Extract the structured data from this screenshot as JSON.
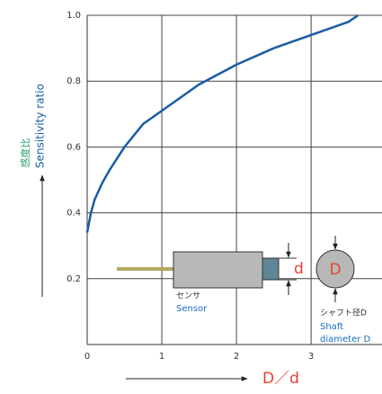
{
  "chart_data": {
    "type": "line",
    "y_label": "Sensitivity ratio",
    "y_label_ja": "感度比",
    "x_label": "D／d",
    "x": [
      0,
      0.05,
      0.1,
      0.2,
      0.3,
      0.5,
      0.75,
      1,
      1.5,
      2,
      2.5,
      3,
      3.5,
      3.63
    ],
    "series": [
      {
        "color": "#1a5ca6",
        "values": [
          0.34,
          0.4,
          0.44,
          0.49,
          0.53,
          0.6,
          0.67,
          0.71,
          0.79,
          0.85,
          0.9,
          0.94,
          0.98,
          1.0
        ]
      }
    ],
    "xlim": [
      0,
      3.95
    ],
    "ylim": [
      0,
      1.0
    ],
    "xticks": [
      0,
      1,
      2,
      3
    ],
    "yticks": [
      {
        "value": 0.2,
        "label": "0.2"
      },
      {
        "value": 0.4,
        "label": "0.4"
      },
      {
        "value": 0.6,
        "label": "0.6"
      },
      {
        "value": 0.8,
        "label": "0.8"
      },
      {
        "value": 1.0,
        "label": "1.0"
      }
    ],
    "grid": true,
    "diagram": {
      "d_label": "d",
      "D_label": "D",
      "sensor_ja": "センサ",
      "sensor_en": "Sensor",
      "shaft_ja": "シャフト径D",
      "shaft_en": [
        "Shaft",
        "diameter D"
      ]
    }
  }
}
